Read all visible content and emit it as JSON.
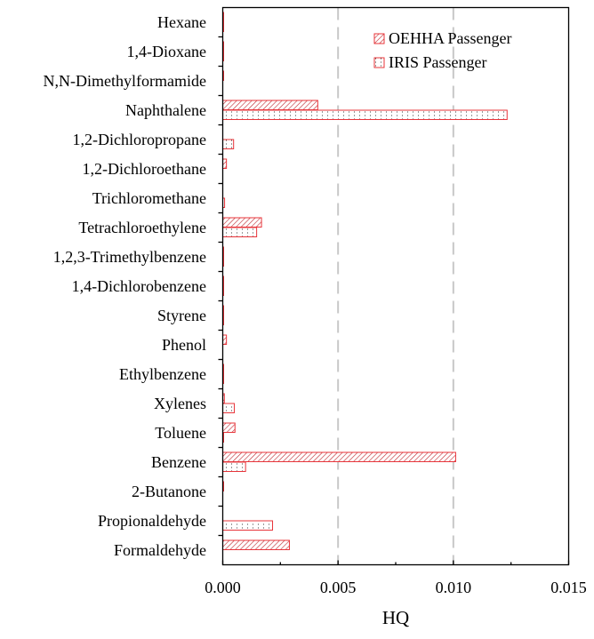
{
  "chart_data": {
    "type": "bar",
    "orientation": "horizontal",
    "title": "",
    "xlabel": "HQ",
    "ylabel": "",
    "xlim": [
      0,
      0.015
    ],
    "xticks": [
      "0.000",
      "0.005",
      "0.010",
      "0.015"
    ],
    "xtick_values": [
      0,
      0.005,
      0.01,
      0.015
    ],
    "grid": "dashed vertical at 0.005 and 0.010",
    "legend_position": "top-right",
    "categories": [
      "Hexane",
      "1,4-Dioxane",
      "N,N-Dimethylformamide",
      "Naphthalene",
      "1,2-Dichloropropane",
      "1,2-Dichloroethane",
      "Trichloromethane",
      "Tetrachloroethylene",
      "1,2,3-Trimethylbenzene",
      "1,4-Dichlorobenzene",
      "Styrene",
      "Phenol",
      "Ethylbenzene",
      "Xylenes",
      "Toluene",
      "Benzene",
      "2-Butanone",
      "Propionaldehyde",
      "Formaldehyde"
    ],
    "series": [
      {
        "name": "OEHHA Passenger",
        "pattern": "hatch",
        "color": "#e8343a",
        "values": [
          2e-05,
          2e-05,
          2e-05,
          0.00412,
          0,
          0.00016,
          0,
          0.00168,
          2e-05,
          2e-05,
          2e-05,
          0.00016,
          2e-05,
          7e-05,
          0.00053,
          0.0101,
          2e-05,
          0,
          0.00289
        ]
      },
      {
        "name": "IRIS Passenger",
        "pattern": "dots",
        "color": "#e8343a",
        "values": [
          2e-05,
          2e-05,
          0,
          0.01233,
          0.00047,
          0,
          8e-05,
          0.00147,
          2e-05,
          2e-05,
          2e-05,
          0,
          2e-05,
          0.0005,
          2e-05,
          0.00099,
          0,
          0.00216,
          0
        ]
      }
    ]
  }
}
